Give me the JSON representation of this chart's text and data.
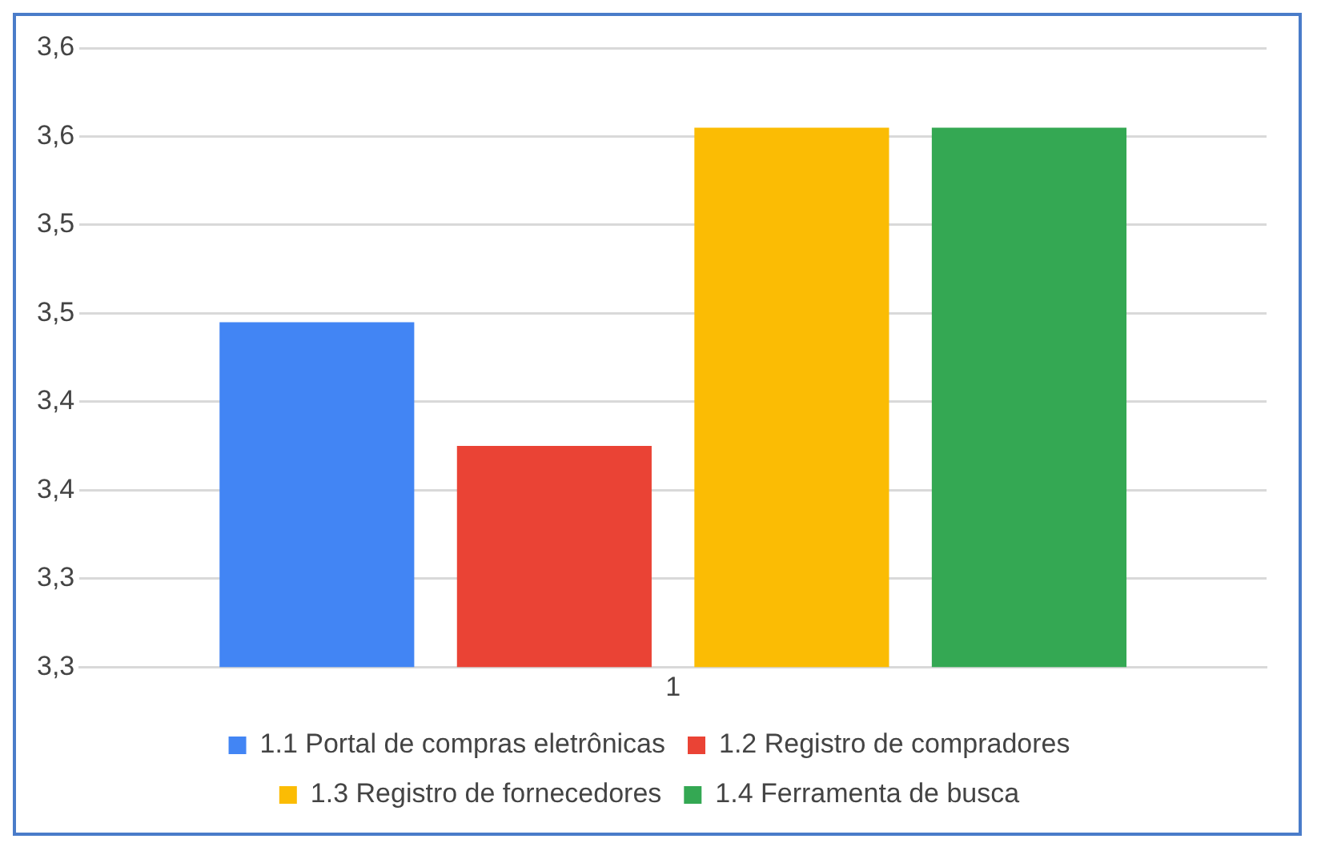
{
  "chart_data": {
    "type": "bar",
    "categories": [
      "1"
    ],
    "series": [
      {
        "name": "1.1 Portal de compras eletrônicas",
        "color": "#4285f4",
        "values": [
          3.445
        ]
      },
      {
        "name": "1.2 Registro de compradores",
        "color": "#ea4335",
        "values": [
          3.375
        ]
      },
      {
        "name": "1.3 Registro de fornecedores",
        "color": "#fbbc04",
        "values": [
          3.555
        ]
      },
      {
        "name": "1.4 Ferramenta de busca",
        "color": "#34a853",
        "values": [
          3.555
        ]
      }
    ],
    "ylim": [
      3.25,
      3.6
    ],
    "yticks": [
      {
        "value": 3.25,
        "label": "3,3"
      },
      {
        "value": 3.3,
        "label": "3,3"
      },
      {
        "value": 3.35,
        "label": "3,4"
      },
      {
        "value": 3.4,
        "label": "3,4"
      },
      {
        "value": 3.45,
        "label": "3,5"
      },
      {
        "value": 3.5,
        "label": "3,5"
      },
      {
        "value": 3.55,
        "label": "3,6"
      },
      {
        "value": 3.6,
        "label": "3,6"
      }
    ],
    "grid": "y",
    "legend": "bottom"
  }
}
